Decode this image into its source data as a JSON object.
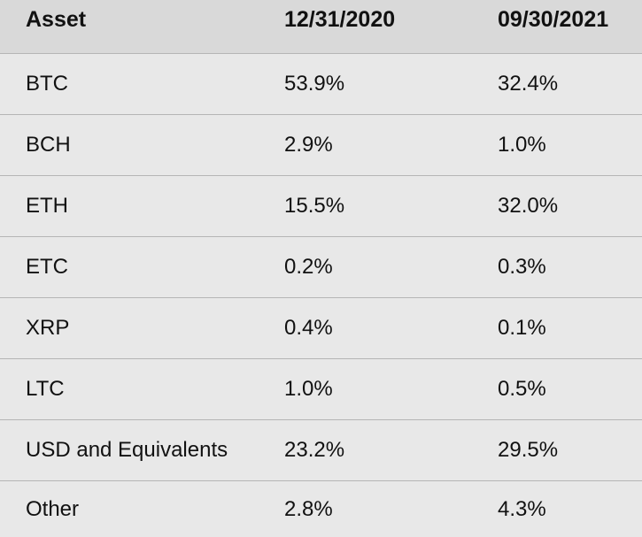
{
  "columns": [
    "Asset",
    "12/31/2020",
    "09/30/2021"
  ],
  "rows": [
    [
      "BTC",
      "53.9%",
      "32.4%"
    ],
    [
      "BCH",
      "2.9%",
      "1.0%"
    ],
    [
      "ETH",
      "15.5%",
      "32.0%"
    ],
    [
      "ETC",
      "0.2%",
      "0.3%"
    ],
    [
      "XRP",
      "0.4%",
      "0.1%"
    ],
    [
      "LTC",
      "1.0%",
      "0.5%"
    ],
    [
      "USD and Equivalents",
      "23.2%",
      "29.5%"
    ],
    [
      "Other",
      "2.8%",
      "4.3%"
    ]
  ]
}
